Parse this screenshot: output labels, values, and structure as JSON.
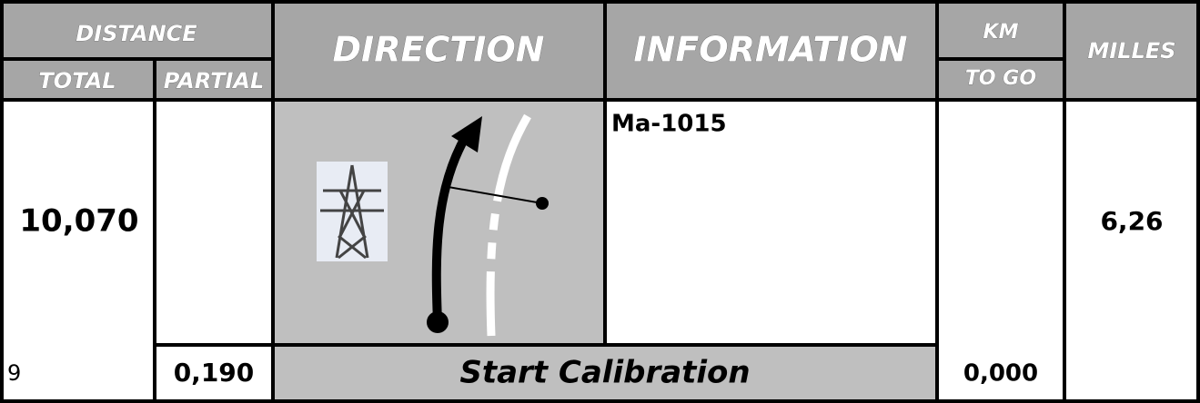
{
  "header": {
    "distance": "DISTANCE",
    "total": "TOTAL",
    "partial": "PARTIAL",
    "direction": "DIRECTION",
    "information": "INFORMATION",
    "km": "KM",
    "to_go": "TO GO",
    "milles": "MILLES"
  },
  "row": {
    "total": "10,070",
    "information": "Ma-1015",
    "milles": "6,26"
  },
  "footer": {
    "index": "9",
    "partial": "0,190",
    "direction": "Start Calibration",
    "km_to_go": "0,000"
  }
}
